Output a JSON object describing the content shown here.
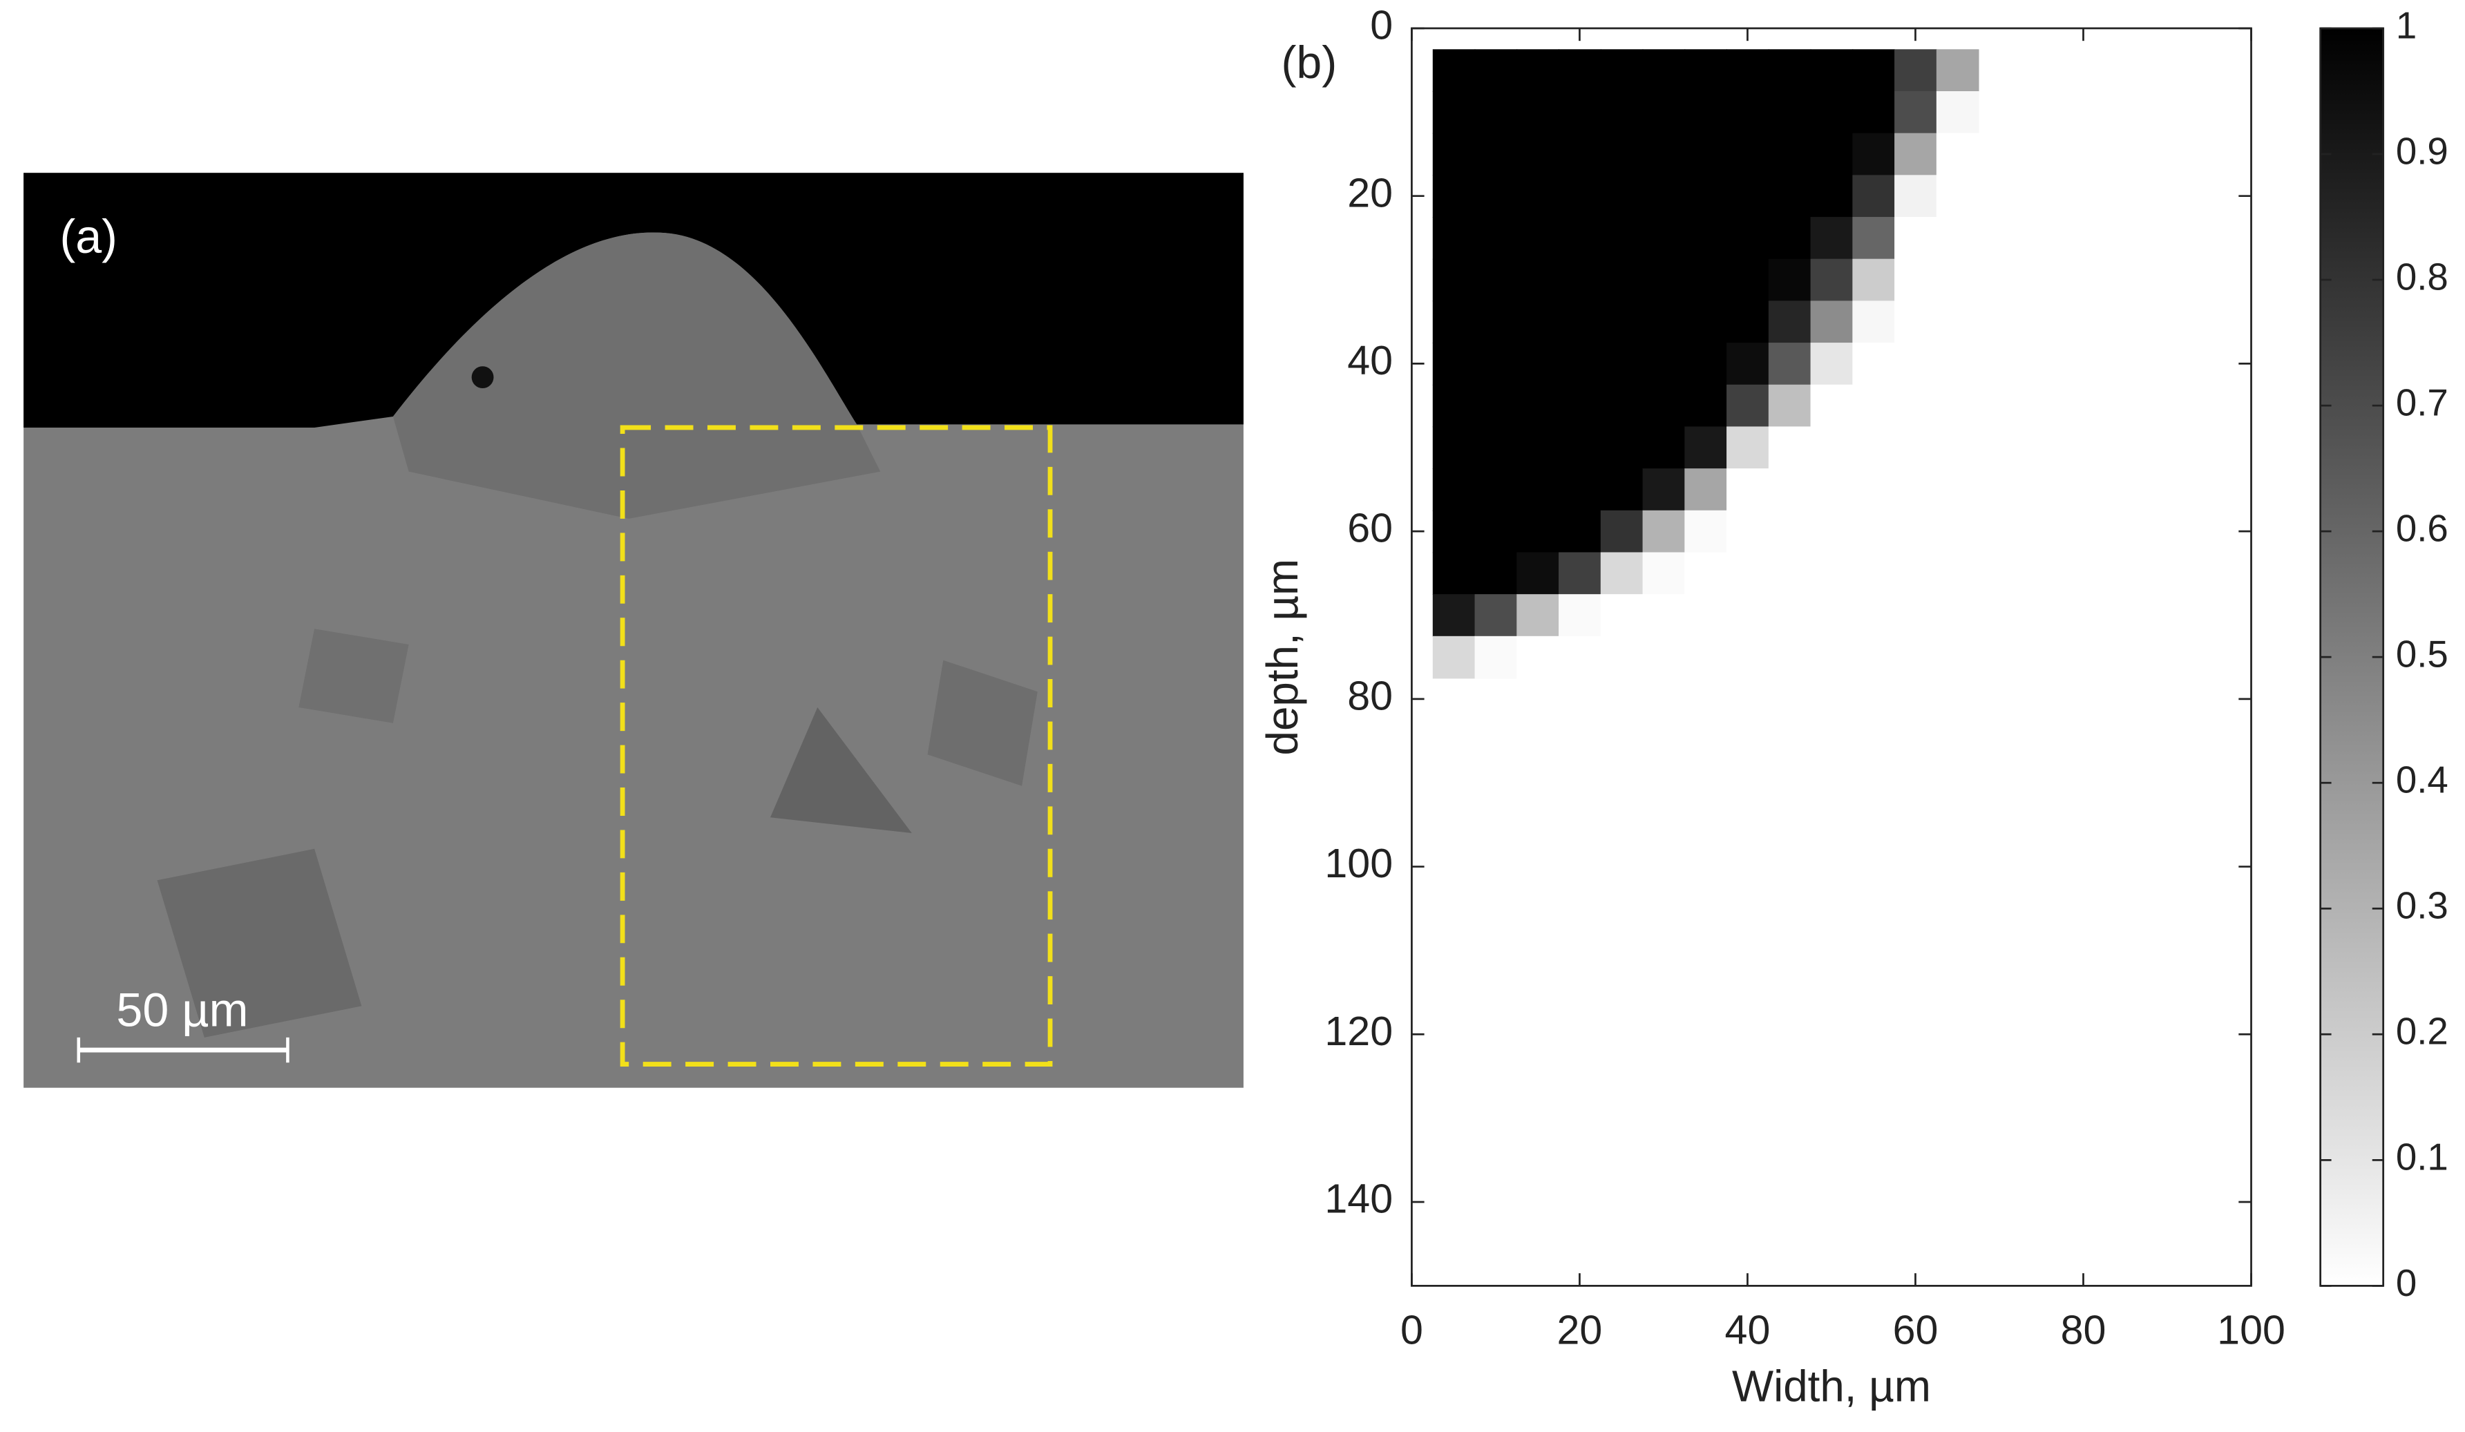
{
  "panel_a": {
    "label": "(a)",
    "scale_bar": "50 µm"
  },
  "chart_data": {
    "type": "heatmap",
    "panel_label": "(b)",
    "x_label": "Width, µm",
    "y_label": "depth, µm",
    "x": [
      5,
      10,
      15,
      20,
      25,
      30,
      35,
      40,
      45,
      50,
      55,
      60,
      65
    ],
    "y": [
      5,
      10,
      15,
      20,
      25,
      30,
      35,
      40,
      45,
      50,
      55,
      60,
      65,
      70,
      75
    ],
    "z": [
      [
        1,
        1,
        1,
        1,
        1,
        1,
        1,
        1,
        1,
        1,
        1,
        0.75,
        0.35
      ],
      [
        1,
        1,
        1,
        1,
        1,
        1,
        1,
        1,
        1,
        1,
        1,
        0.7,
        0.03
      ],
      [
        1,
        1,
        1,
        1,
        1,
        1,
        1,
        1,
        1,
        1,
        0.95,
        0.35,
        0
      ],
      [
        1,
        1,
        1,
        1,
        1,
        1,
        1,
        1,
        1,
        1,
        0.8,
        0.05,
        0
      ],
      [
        1,
        1,
        1,
        1,
        1,
        1,
        1,
        1,
        1,
        0.9,
        0.6,
        0,
        0
      ],
      [
        1,
        1,
        1,
        1,
        1,
        1,
        1,
        1,
        0.97,
        0.75,
        0.2,
        0,
        0
      ],
      [
        1,
        1,
        1,
        1,
        1,
        1,
        1,
        1,
        0.85,
        0.45,
        0.03,
        0,
        0
      ],
      [
        1,
        1,
        1,
        1,
        1,
        1,
        1,
        0.95,
        0.65,
        0.1,
        0,
        0,
        0
      ],
      [
        1,
        1,
        1,
        1,
        1,
        1,
        1,
        0.75,
        0.25,
        0,
        0,
        0,
        0
      ],
      [
        1,
        1,
        1,
        1,
        1,
        1,
        0.9,
        0.15,
        0,
        0,
        0,
        0,
        0
      ],
      [
        1,
        1,
        1,
        1,
        1,
        0.9,
        0.35,
        0,
        0,
        0,
        0,
        0,
        0
      ],
      [
        1,
        1,
        1,
        1,
        0.8,
        0.3,
        0.02,
        0,
        0,
        0,
        0,
        0,
        0
      ],
      [
        1,
        1,
        0.95,
        0.75,
        0.15,
        0.02,
        0,
        0,
        0,
        0,
        0,
        0,
        0
      ],
      [
        0.9,
        0.7,
        0.25,
        0.02,
        0,
        0,
        0,
        0,
        0,
        0,
        0,
        0,
        0
      ],
      [
        0.15,
        0.02,
        0,
        0,
        0,
        0,
        0,
        0,
        0,
        0,
        0,
        0,
        0
      ]
    ],
    "xlim": [
      0,
      100
    ],
    "xticks": [
      0,
      20,
      40,
      60,
      80,
      100
    ],
    "ylim": [
      0,
      150
    ],
    "yticks": [
      0,
      20,
      40,
      60,
      80,
      100,
      120,
      140
    ],
    "y_reversed": true,
    "colormap": "gray_reversed",
    "clim": [
      0,
      1
    ],
    "cticks": [
      0,
      0.1,
      0.2,
      0.3,
      0.4,
      0.5,
      0.6,
      0.7,
      0.8,
      0.9,
      1
    ]
  }
}
